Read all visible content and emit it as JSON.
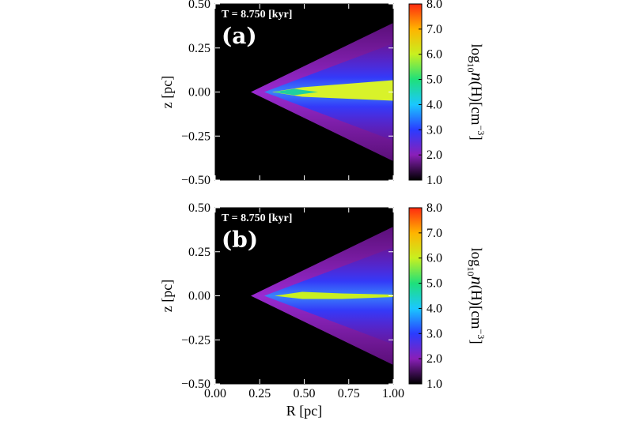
{
  "chart_data": [
    {
      "type": "heatmap",
      "title": "T =  8.750 [kyr]",
      "panel_label": "(a)",
      "ylabel": "z [pc]",
      "xlim": [
        0,
        1
      ],
      "ylim": [
        -0.5,
        0.5
      ],
      "xticks": [
        0,
        0.25,
        0.5,
        0.75,
        1
      ],
      "yticks": [
        {
          "value": 0.5,
          "label": "0.50"
        },
        {
          "value": 0.25,
          "label": "0.25"
        },
        {
          "value": 0,
          "label": "0.00"
        },
        {
          "value": -0.25,
          "label": "−0.25"
        },
        {
          "value": -0.5,
          "label": "−0.50"
        }
      ],
      "clim": [
        1,
        8
      ],
      "cticks": [
        {
          "value": 1,
          "label": "1.0"
        },
        {
          "value": 2,
          "label": "2.0"
        },
        {
          "value": 3,
          "label": "3.0"
        },
        {
          "value": 4,
          "label": "4.0"
        },
        {
          "value": 5,
          "label": "5.0"
        },
        {
          "value": 6,
          "label": "6.0"
        },
        {
          "value": 7,
          "label": "7.0"
        },
        {
          "value": 8,
          "label": "8.0"
        }
      ],
      "colormap": [
        "#000000",
        "#8a1fb8",
        "#2a3cff",
        "#1ac8ff",
        "#1fe07a",
        "#c8f020",
        "#ffb400",
        "#ff2a10"
      ],
      "colorbar_label": [
        "log",
        "10",
        "n",
        "(H)[cm",
        "−3",
        "]"
      ]
    },
    {
      "type": "heatmap",
      "title": "T =  8.750 [kyr]",
      "panel_label": "(b)",
      "ylabel": "z [pc]",
      "xlabel": "R [pc]",
      "xlim": [
        0,
        1
      ],
      "ylim": [
        -0.5,
        0.5
      ],
      "xticks": [
        {
          "value": 0,
          "label": "0.00"
        },
        {
          "value": 0.25,
          "label": "0.25"
        },
        {
          "value": 0.5,
          "label": "0.50"
        },
        {
          "value": 0.75,
          "label": "0.75"
        },
        {
          "value": 1,
          "label": "1.00"
        }
      ],
      "yticks": [
        {
          "value": 0.5,
          "label": "0.50"
        },
        {
          "value": 0.25,
          "label": "0.25"
        },
        {
          "value": 0,
          "label": "0.00"
        },
        {
          "value": -0.25,
          "label": "−0.25"
        },
        {
          "value": -0.5,
          "label": "−0.50"
        }
      ],
      "clim": [
        1,
        8
      ],
      "cticks": [
        {
          "value": 1,
          "label": "1.0"
        },
        {
          "value": 2,
          "label": "2.0"
        },
        {
          "value": 3,
          "label": "3.0"
        },
        {
          "value": 4,
          "label": "4.0"
        },
        {
          "value": 5,
          "label": "5.0"
        },
        {
          "value": 6,
          "label": "6.0"
        },
        {
          "value": 7,
          "label": "7.0"
        },
        {
          "value": 8,
          "label": "8.0"
        }
      ],
      "colormap": [
        "#000000",
        "#8a1fb8",
        "#2a3cff",
        "#1ac8ff",
        "#1fe07a",
        "#c8f020",
        "#ffb400",
        "#ff2a10"
      ],
      "colorbar_label": [
        "log",
        "10",
        "n",
        "(H)[cm",
        "−3",
        "]"
      ]
    }
  ]
}
